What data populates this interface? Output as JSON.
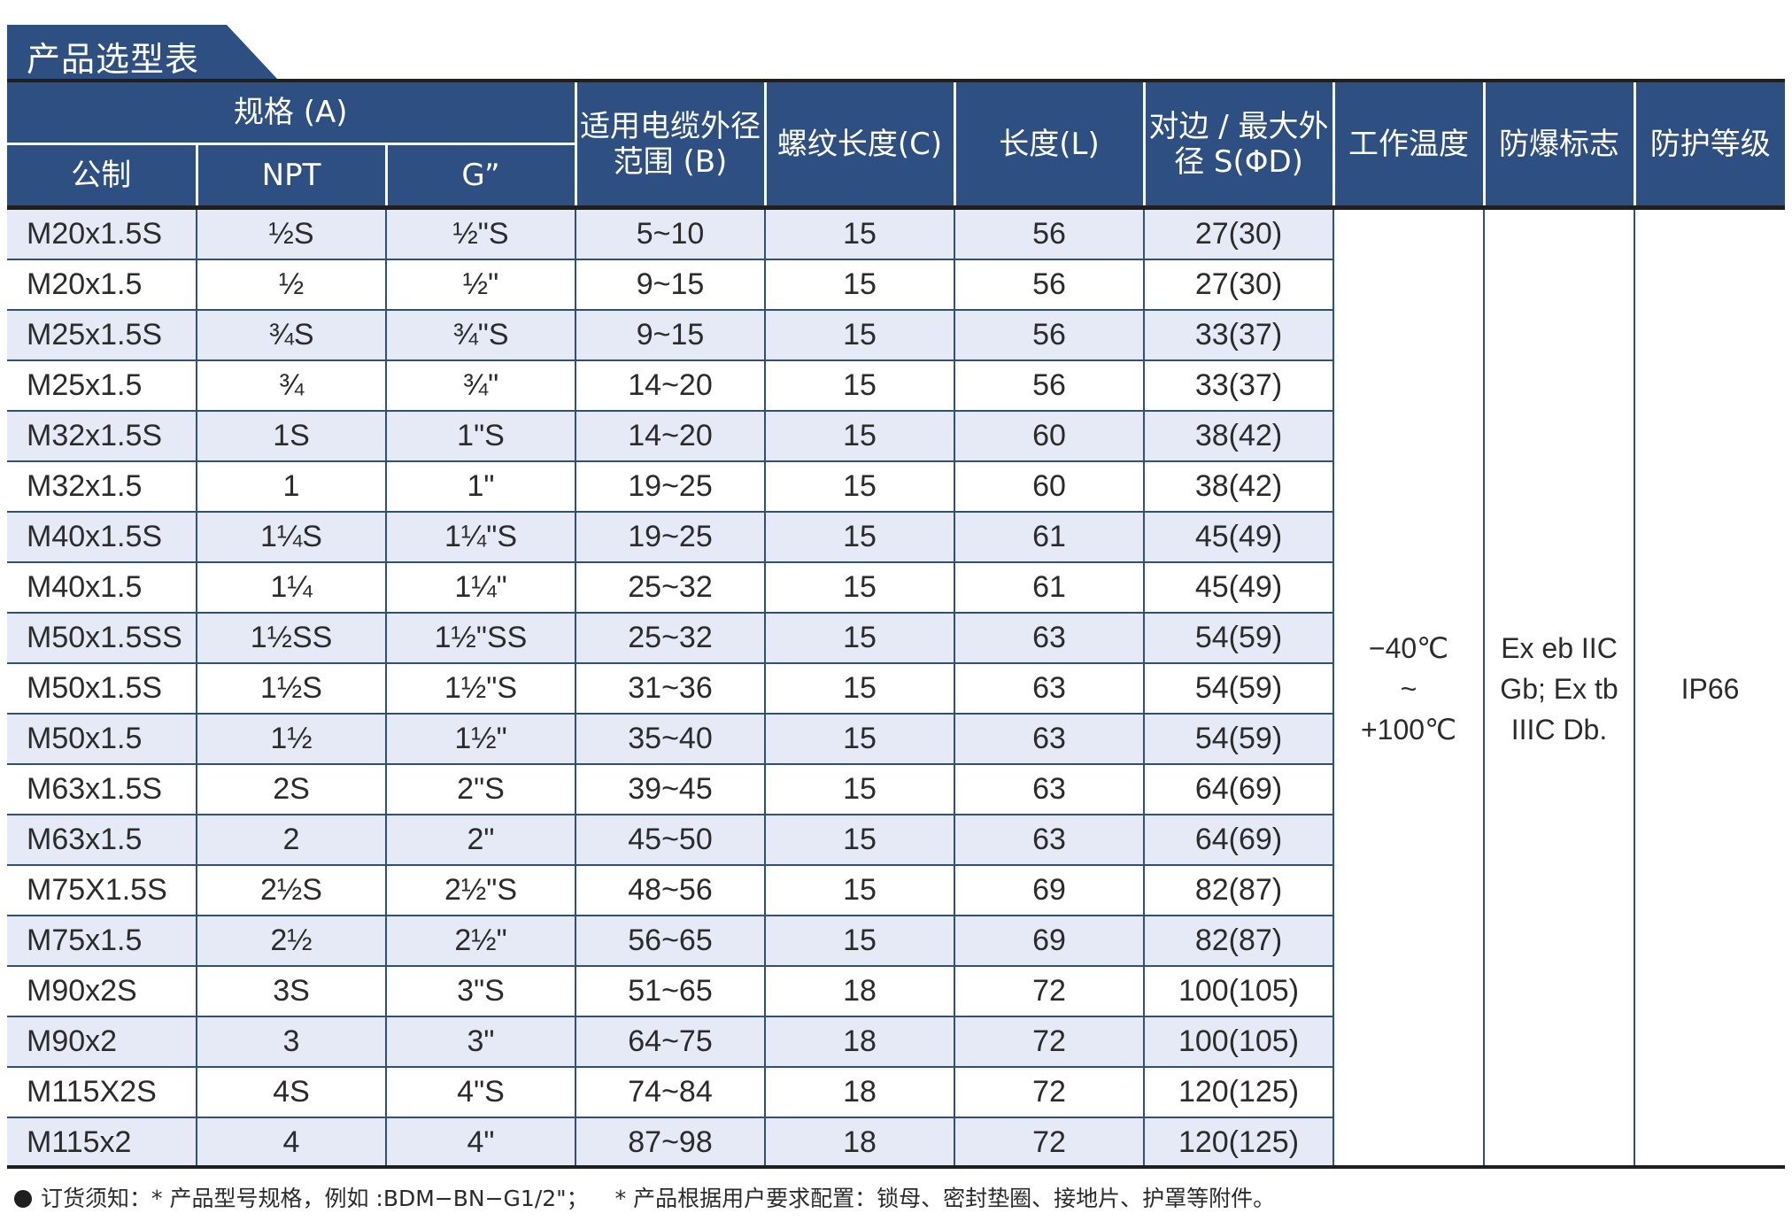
{
  "title": "产品选型表",
  "colors": {
    "header_bg": "#2d4f82",
    "row_shade": "#e5eaf6",
    "rule": "#1f1f1f"
  },
  "header": {
    "spec_group": "规格 (A)",
    "metric": "公制",
    "npt": "NPT",
    "g": "G”",
    "cable_range": "适用电缆外径范围 (B)",
    "thread_length": "螺纹长度(C)",
    "length": "长度(L)",
    "across_flats": "对边 / 最大外径 S(ΦD)",
    "work_temp": "工作温度",
    "ex_mark": "防爆标志",
    "protection": "防护等级"
  },
  "rows": [
    {
      "metric": "M20x1.5S",
      "npt": "½S",
      "g": "½\"S",
      "cable": "5~10",
      "thread": "15",
      "length": "56",
      "af": "27(30)"
    },
    {
      "metric": "M20x1.5",
      "npt": "½",
      "g": "½\"",
      "cable": "9~15",
      "thread": "15",
      "length": "56",
      "af": "27(30)"
    },
    {
      "metric": "M25x1.5S",
      "npt": "¾S",
      "g": "¾\"S",
      "cable": "9~15",
      "thread": "15",
      "length": "56",
      "af": "33(37)"
    },
    {
      "metric": "M25x1.5",
      "npt": "¾",
      "g": "¾\"",
      "cable": "14~20",
      "thread": "15",
      "length": "56",
      "af": "33(37)"
    },
    {
      "metric": "M32x1.5S",
      "npt": "1S",
      "g": "1\"S",
      "cable": "14~20",
      "thread": "15",
      "length": "60",
      "af": "38(42)"
    },
    {
      "metric": "M32x1.5",
      "npt": "1",
      "g": "1\"",
      "cable": "19~25",
      "thread": "15",
      "length": "60",
      "af": "38(42)"
    },
    {
      "metric": "M40x1.5S",
      "npt": "1¼S",
      "g": "1¼\"S",
      "cable": "19~25",
      "thread": "15",
      "length": "61",
      "af": "45(49)"
    },
    {
      "metric": "M40x1.5",
      "npt": "1¼",
      "g": "1¼\"",
      "cable": "25~32",
      "thread": "15",
      "length": "61",
      "af": "45(49)"
    },
    {
      "metric": "M50x1.5SS",
      "npt": "1½SS",
      "g": "1½\"SS",
      "cable": "25~32",
      "thread": "15",
      "length": "63",
      "af": "54(59)"
    },
    {
      "metric": "M50x1.5S",
      "npt": "1½S",
      "g": "1½\"S",
      "cable": "31~36",
      "thread": "15",
      "length": "63",
      "af": "54(59)"
    },
    {
      "metric": "M50x1.5",
      "npt": "1½",
      "g": "1½\"",
      "cable": "35~40",
      "thread": "15",
      "length": "63",
      "af": "54(59)"
    },
    {
      "metric": "M63x1.5S",
      "npt": "2S",
      "g": "2\"S",
      "cable": "39~45",
      "thread": "15",
      "length": "63",
      "af": "64(69)"
    },
    {
      "metric": "M63x1.5",
      "npt": "2",
      "g": "2\"",
      "cable": "45~50",
      "thread": "15",
      "length": "63",
      "af": "64(69)"
    },
    {
      "metric": "M75X1.5S",
      "npt": "2½S",
      "g": "2½\"S",
      "cable": "48~56",
      "thread": "15",
      "length": "69",
      "af": "82(87)"
    },
    {
      "metric": "M75x1.5",
      "npt": "2½",
      "g": "2½\"",
      "cable": "56~65",
      "thread": "15",
      "length": "69",
      "af": "82(87)"
    },
    {
      "metric": "M90x2S",
      "npt": "3S",
      "g": "3\"S",
      "cable": "51~65",
      "thread": "18",
      "length": "72",
      "af": "100(105)"
    },
    {
      "metric": "M90x2",
      "npt": "3",
      "g": "3\"",
      "cable": "64~75",
      "thread": "18",
      "length": "72",
      "af": "100(105)"
    },
    {
      "metric": "M115X2S",
      "npt": "4S",
      "g": "4\"S",
      "cable": "74~84",
      "thread": "18",
      "length": "72",
      "af": "120(125)"
    },
    {
      "metric": "M115x2",
      "npt": "4",
      "g": "4\"",
      "cable": "87~98",
      "thread": "18",
      "length": "72",
      "af": "120(125)"
    }
  ],
  "merged": {
    "work_temp": [
      "−40℃",
      "~",
      "+100℃"
    ],
    "ex_mark": [
      "Ex eb IIC",
      "Gb; Ex tb",
      "IIIC Db."
    ],
    "protection": "IP66"
  },
  "footnote": {
    "label": "订货须知：",
    "note1": "* 产品型号规格，例如 :BDM−BN−G1/2\"；",
    "note2": "* 产品根据用户要求配置：锁母、密封垫圈、接地片、护罩等附件。"
  }
}
